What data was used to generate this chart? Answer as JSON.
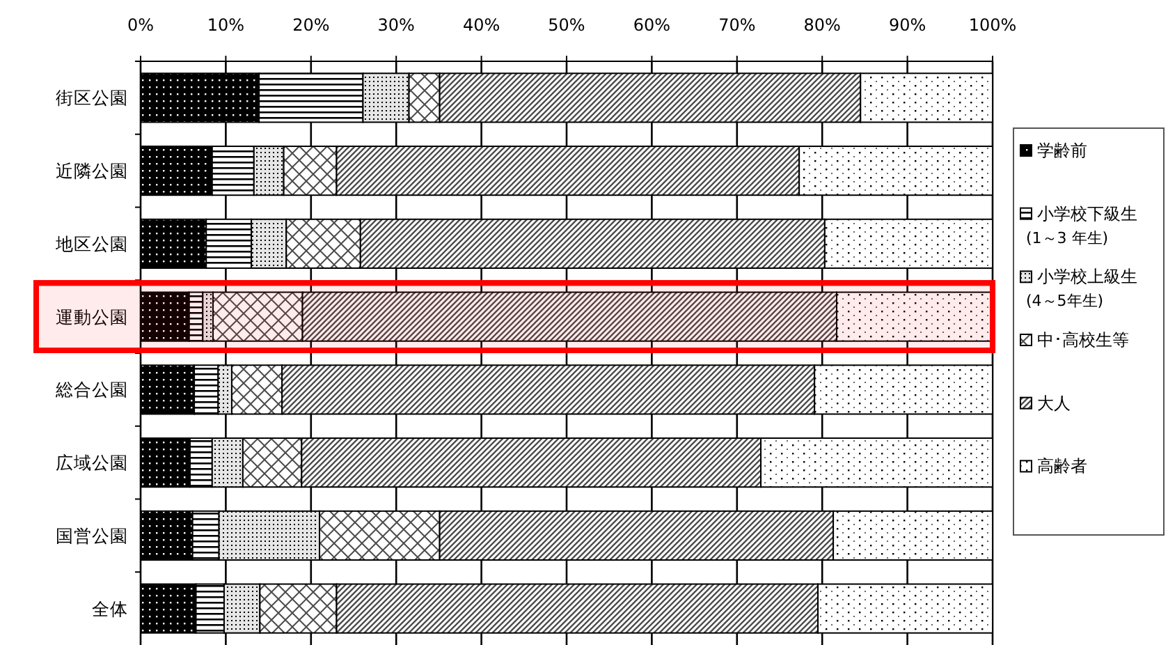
{
  "chart_data": {
    "type": "bar",
    "orientation": "horizontal",
    "stacked": true,
    "categories": [
      "街区公園",
      "近隣公園",
      "地区公園",
      "運動公園",
      "総合公園",
      "広域公園",
      "国営公園",
      "全体"
    ],
    "series": [
      {
        "name": "学齢前",
        "color": "#000000",
        "values": [
          13.9,
          8.4,
          7.7,
          5.7,
          6.3,
          5.8,
          6.1,
          6.5
        ]
      },
      {
        "name": "小学校下級生\n(1～3 年生)",
        "color": "#000000",
        "values": [
          12.2,
          4.9,
          5.3,
          1.6,
          2.8,
          2.6,
          3.1,
          3.3
        ]
      },
      {
        "name": "小学校上級生\n(4～5年生)",
        "color": "#000000",
        "values": [
          5.4,
          3.5,
          4.1,
          1.2,
          1.6,
          3.6,
          11.8,
          4.2
        ]
      },
      {
        "name": "中･高校生等",
        "color": "#000000",
        "values": [
          3.6,
          6.2,
          8.7,
          10.5,
          5.9,
          6.9,
          14.1,
          9.0
        ]
      },
      {
        "name": "大人",
        "color": "#000000",
        "values": [
          49.4,
          54.3,
          54.5,
          62.7,
          62.5,
          53.9,
          46.2,
          56.5
        ]
      },
      {
        "name": "高齢者",
        "color": "#000000",
        "values": [
          15.5,
          22.7,
          19.7,
          18.3,
          20.9,
          27.2,
          18.7,
          20.5
        ]
      }
    ],
    "xlim": [
      0,
      100
    ],
    "xticks": [
      {
        "value": 0,
        "label": "0%"
      },
      {
        "value": 10,
        "label": "10%"
      },
      {
        "value": 20,
        "label": "20%"
      },
      {
        "value": 30,
        "label": "30%"
      },
      {
        "value": 40,
        "label": "40%"
      },
      {
        "value": 50,
        "label": "50%"
      },
      {
        "value": 60,
        "label": "60%"
      },
      {
        "value": 70,
        "label": "70%"
      },
      {
        "value": 80,
        "label": "80%"
      },
      {
        "value": 90,
        "label": "90%"
      },
      {
        "value": 100,
        "label": "100%"
      }
    ],
    "bands": [
      {
        "axis": "y",
        "from": "運動公園",
        "to": "運動公園",
        "color": "#ff0000"
      }
    ],
    "grid": "x",
    "legend": "right"
  }
}
